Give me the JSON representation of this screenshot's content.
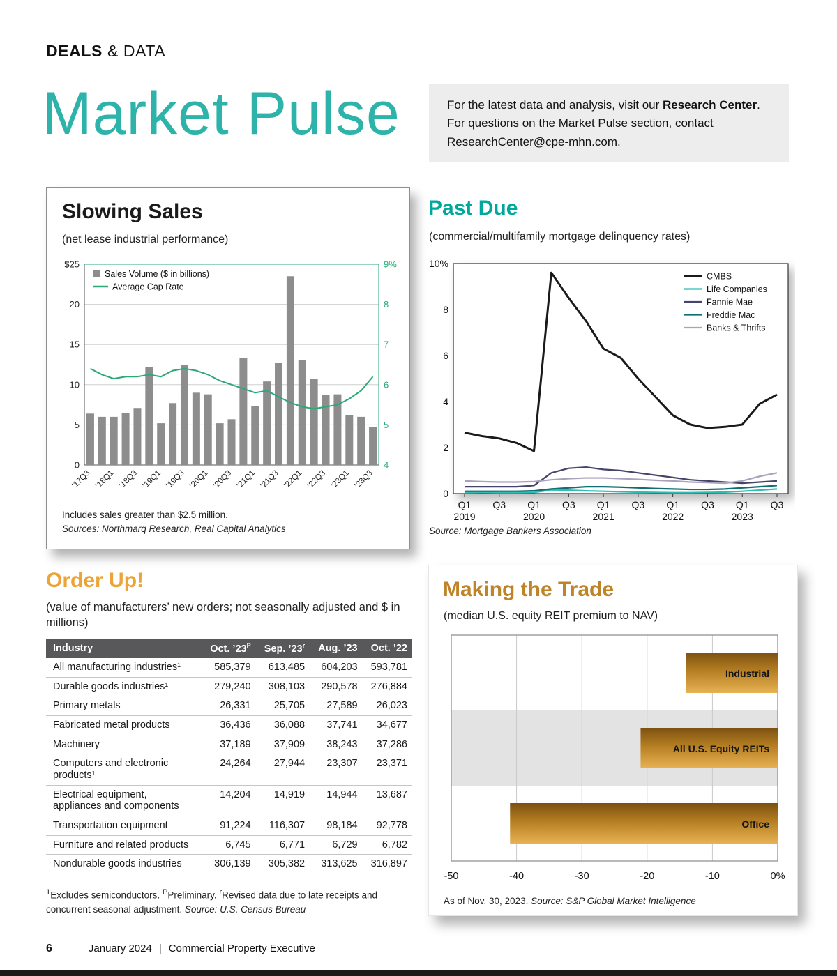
{
  "page": {
    "kicker_bold": "DEALS",
    "kicker_rest": " & DATA",
    "title": "Market Pulse",
    "footer": {
      "page_number": "6",
      "date": "January 2024",
      "separator": "|",
      "brand": "Commercial Property Executive"
    }
  },
  "colors": {
    "teal_title": "#2db3a9",
    "teal_heading": "#00a79c",
    "orange_heading": "#eca438",
    "gold_heading": "#c08428",
    "bar_gray": "#8d8d8d",
    "cap_rate_green": "#2ca877",
    "table_header_bg": "#58585a",
    "infobox_bg": "#ededed"
  },
  "infobox": {
    "line1_pre": "For the latest data and analysis, visit our ",
    "line1_bold": "Research Center",
    "line1_post": ".",
    "line2": "For questions on the Market Pulse section, contact",
    "line3": "ResearchCenter@cpe-mhn.com."
  },
  "slowing_sales": {
    "title": "Slowing Sales",
    "subtitle": "(net lease industrial performance)",
    "note": "Includes sales greater than $2.5 million.",
    "source": "Sources: Northmarq Research, Real Capital Analytics"
  },
  "past_due": {
    "title": "Past Due",
    "subtitle": "(commercial/multifamily mortgage delinquency rates)",
    "source": "Source: Mortgage Bankers Association"
  },
  "order_up": {
    "title": "Order Up!",
    "subtitle": "(value of manufacturers’ new orders; not seasonally adjusted and $ in millions)",
    "table": {
      "headers": [
        {
          "t": "Industry"
        },
        {
          "t": "Oct. ’23",
          "sup": "P"
        },
        {
          "t": "Sep. ’23",
          "sup": "r"
        },
        {
          "t": "Aug. ’23"
        },
        {
          "t": "Oct. ’22"
        }
      ],
      "rows": [
        {
          "label": "All manufacturing industries¹",
          "values": [
            "585,379",
            "613,485",
            "604,203",
            "593,781"
          ]
        },
        {
          "label": "Durable goods industries¹",
          "values": [
            "279,240",
            "308,103",
            "290,578",
            "276,884"
          ]
        },
        {
          "label": "Primary metals",
          "values": [
            "26,331",
            "25,705",
            "27,589",
            "26,023"
          ]
        },
        {
          "label": "Fabricated metal products",
          "values": [
            "36,436",
            "36,088",
            "37,741",
            "34,677"
          ]
        },
        {
          "label": "Machinery",
          "values": [
            "37,189",
            "37,909",
            "38,243",
            "37,286"
          ]
        },
        {
          "label": "Computers and electronic products¹",
          "values": [
            "24,264",
            "27,944",
            "23,307",
            "23,371"
          ]
        },
        {
          "label": "Electrical equipment, appliances and components",
          "values": [
            "14,204",
            "14,919",
            "14,944",
            "13,687"
          ]
        },
        {
          "label": "Transportation equipment",
          "values": [
            "91,224",
            "116,307",
            "98,184",
            "92,778"
          ]
        },
        {
          "label": "Furniture and related products",
          "values": [
            "6,745",
            "6,771",
            "6,729",
            "6,782"
          ]
        },
        {
          "label": "Nondurable goods industries",
          "values": [
            "306,139",
            "305,382",
            "313,625",
            "316,897"
          ]
        }
      ]
    },
    "footnote_segments": [
      {
        "sup": "1"
      },
      {
        "t": "Excludes semiconductors. "
      },
      {
        "sup": "P"
      },
      {
        "t": "Preliminary. "
      },
      {
        "sup": "r"
      },
      {
        "t": "Revised data due to late receipts and concurrent seasonal adjustment. "
      },
      {
        "i": "Source: U.S. Census Bureau"
      }
    ]
  },
  "making_trade": {
    "title": "Making the Trade",
    "subtitle": "(median U.S. equity REIT premium to NAV)",
    "footnote_plain": "As of Nov. 30, 2023. ",
    "footnote_italic": "Source: S&P Global Market Intelligence"
  },
  "chart_data": [
    {
      "id": "slowing-sales",
      "type": "bar+line",
      "categories": [
        "’17Q3",
        "’17Q4",
        "’18Q1",
        "’18Q2",
        "’18Q3",
        "’18Q4",
        "’19Q1",
        "’19Q2",
        "’19Q3",
        "’19Q4",
        "’20Q1",
        "’20Q2",
        "’20Q3",
        "’20Q4",
        "’21Q1",
        "’21Q2",
        "’21Q3",
        "’21Q4",
        "’22Q1",
        "’22Q2",
        "’22Q3",
        "’22Q4",
        "’23Q1",
        "’23Q2",
        "’23Q3"
      ],
      "x_tick_labels": [
        "’17Q3",
        "’18Q1",
        "’18Q3",
        "’19Q1",
        "’19Q3",
        "’20Q1",
        "’20Q3",
        "’21Q1",
        "’21Q3",
        "’22Q1",
        "’22Q3",
        "’23Q1",
        "’23Q3"
      ],
      "series": [
        {
          "name": "Sales Volume ($ in billions)",
          "type": "bar",
          "axis": "left",
          "color": "#8d8d8d",
          "values": [
            6.4,
            6.0,
            6.0,
            6.5,
            7.1,
            12.2,
            5.2,
            7.7,
            12.5,
            9.0,
            8.8,
            5.2,
            5.7,
            13.3,
            7.3,
            10.4,
            12.7,
            23.5,
            13.1,
            10.7,
            8.7,
            8.8,
            6.2,
            6.0,
            4.7
          ]
        },
        {
          "name": "Average Cap Rate",
          "type": "line",
          "axis": "right",
          "color": "#2ca877",
          "values": [
            6.4,
            6.25,
            6.15,
            6.2,
            6.2,
            6.25,
            6.2,
            6.35,
            6.4,
            6.35,
            6.25,
            6.1,
            6.0,
            5.9,
            5.8,
            5.85,
            5.7,
            5.55,
            5.45,
            5.4,
            5.45,
            5.5,
            5.65,
            5.85,
            6.2
          ]
        }
      ],
      "left_axis": {
        "min": 0,
        "max": 25,
        "tick_labels": [
          "$25",
          "20",
          "15",
          "10",
          "5",
          "0"
        ]
      },
      "right_axis": {
        "min": 4,
        "max": 9,
        "tick_labels": [
          "9%",
          "8",
          "7",
          "6",
          "5",
          "4"
        ]
      }
    },
    {
      "id": "past-due",
      "type": "line",
      "x_span": "Q1 2019 - Q3 2023 (quarterly)",
      "x_ticks": [
        {
          "q": "Q1",
          "year": "2019"
        },
        {
          "q": "Q3"
        },
        {
          "q": "Q1",
          "year": "2020"
        },
        {
          "q": "Q3"
        },
        {
          "q": "Q1",
          "year": "2021"
        },
        {
          "q": "Q3"
        },
        {
          "q": "Q1",
          "year": "2022"
        },
        {
          "q": "Q3"
        },
        {
          "q": "Q1",
          "year": "2023"
        },
        {
          "q": "Q3"
        }
      ],
      "y_axis": {
        "min": 0,
        "max": 10,
        "tick_labels": [
          "10%",
          "8",
          "6",
          "4",
          "2",
          "0"
        ]
      },
      "legend_position": "top-right",
      "series": [
        {
          "name": "CMBS",
          "color": "#1a1a1a",
          "width": 3,
          "values": [
            2.65,
            2.5,
            2.4,
            2.2,
            1.85,
            9.6,
            8.5,
            7.5,
            6.3,
            5.9,
            5.0,
            4.2,
            3.4,
            3.0,
            2.85,
            2.9,
            3.0,
            3.9,
            4.3
          ]
        },
        {
          "name": "Life Companies",
          "color": "#2fbdb3",
          "width": 2.2,
          "values": [
            0.06,
            0.05,
            0.04,
            0.04,
            0.05,
            0.16,
            0.15,
            0.12,
            0.1,
            0.08,
            0.06,
            0.05,
            0.04,
            0.04,
            0.05,
            0.06,
            0.1,
            0.15,
            0.2
          ]
        },
        {
          "name": "Fannie Mae",
          "color": "#45456b",
          "width": 2.2,
          "values": [
            0.3,
            0.3,
            0.3,
            0.3,
            0.35,
            0.9,
            1.1,
            1.15,
            1.05,
            1.0,
            0.9,
            0.8,
            0.7,
            0.6,
            0.55,
            0.5,
            0.45,
            0.5,
            0.55
          ]
        },
        {
          "name": "Freddie Mac",
          "color": "#0f6f72",
          "width": 2.2,
          "values": [
            0.1,
            0.1,
            0.1,
            0.1,
            0.12,
            0.2,
            0.25,
            0.3,
            0.3,
            0.28,
            0.25,
            0.22,
            0.2,
            0.18,
            0.18,
            0.2,
            0.25,
            0.3,
            0.35
          ]
        },
        {
          "name": "Banks & Thrifts",
          "color": "#a9a2bd",
          "width": 2.2,
          "values": [
            0.55,
            0.52,
            0.5,
            0.5,
            0.52,
            0.6,
            0.65,
            0.68,
            0.68,
            0.65,
            0.62,
            0.58,
            0.55,
            0.5,
            0.48,
            0.45,
            0.55,
            0.75,
            0.9
          ]
        }
      ]
    },
    {
      "id": "making-trade",
      "type": "bar-horizontal",
      "categories": [
        "Industrial",
        "All U.S. Equity REITs",
        "Office"
      ],
      "values": [
        -14,
        -21,
        -41
      ],
      "highlight_row": 1,
      "x_axis": {
        "min": -50,
        "max": 0,
        "tick_values": [
          -50,
          -40,
          -30,
          -20,
          -10,
          0
        ],
        "tick_labels": [
          "-50",
          "-40",
          "-30",
          "-20",
          "-10",
          "0%"
        ]
      },
      "bar_gradient": [
        "#7c5110",
        "#b57e22",
        "#e7b253"
      ]
    }
  ]
}
